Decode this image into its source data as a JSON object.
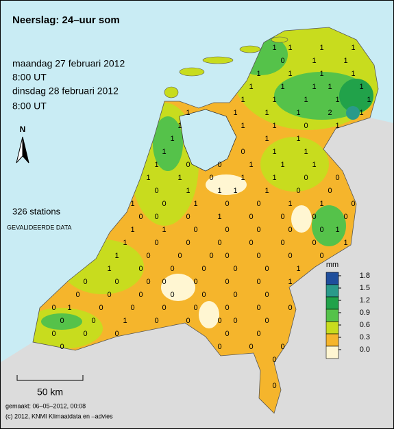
{
  "title": "Neerslag: 24–uur som",
  "period": [
    "maandag 27 februari 2012",
    "8:00 UT",
    "dinsdag 28 februari 2012",
    "8:00 UT"
  ],
  "north": "N",
  "stations": "326 stations",
  "validation": "GEVALIDEERDE DATA",
  "legend": {
    "unit": "mm",
    "ticks": [
      1.8,
      1.5,
      1.2,
      0.9,
      0.6,
      0.3,
      {
        "value": 0,
        "label": "0.0"
      }
    ],
    "colors": [
      "#1f4e9c",
      "#2a9a8a",
      "#21a24a",
      "#55c24a",
      "#c8dc1e",
      "#f5b52c",
      "#fff6d2"
    ]
  },
  "scale": "50 km",
  "made": "gemaakt: 06–05–2012, 00:08",
  "copyright": "(c) 2012, KNMI Klimaatdata en –advies",
  "station_values": [
    1,
    1,
    1,
    1,
    0,
    1,
    1,
    1,
    1,
    1,
    1,
    1,
    1,
    1,
    1,
    1,
    1,
    1,
    1,
    1,
    1,
    1,
    1,
    1,
    1,
    2,
    1,
    1,
    1,
    1,
    0,
    1,
    1,
    1,
    1,
    1,
    0,
    1,
    1,
    1,
    0,
    0,
    1,
    1,
    1,
    1,
    1,
    0,
    1,
    1,
    0,
    0,
    0,
    1,
    1,
    1,
    1,
    0,
    0,
    1,
    0,
    1,
    0,
    0,
    1,
    1,
    0,
    0,
    0,
    0,
    1,
    0,
    0,
    0,
    0,
    1,
    1,
    0,
    0,
    0,
    0,
    0,
    1,
    1,
    0,
    0,
    0,
    0,
    0,
    0,
    1,
    1,
    0,
    0,
    0,
    0,
    0,
    0,
    0,
    1,
    0,
    0,
    0,
    0,
    0,
    1,
    0,
    0,
    0,
    0,
    0,
    0,
    0,
    1,
    0,
    0,
    0,
    0,
    0,
    0,
    0,
    0,
    1,
    0,
    0,
    0,
    0,
    0,
    0,
    0,
    0,
    0,
    1,
    0,
    0,
    0,
    0,
    0,
    0,
    0,
    0,
    0,
    0,
    0,
    0,
    0,
    0,
    0,
    0
  ]
}
